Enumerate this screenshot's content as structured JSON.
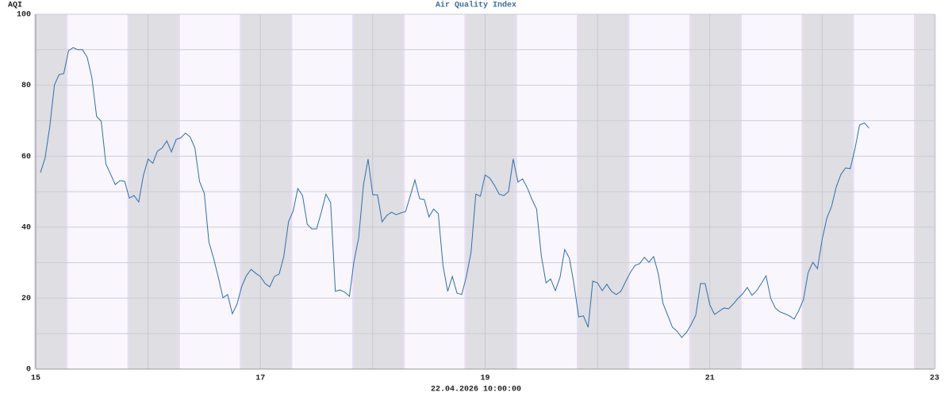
{
  "chart_data": {
    "type": "line",
    "title": "Air Quality Index",
    "y_label": "AQI",
    "x_label": "22.04.2026 10:00:00",
    "xlim": [
      15,
      23
    ],
    "xticks": [
      15,
      17,
      19,
      21,
      23
    ],
    "x_minor_grid": [
      16,
      18,
      20,
      22
    ],
    "ylim": [
      0,
      100
    ],
    "yticks": [
      0,
      20,
      40,
      60,
      80,
      100
    ],
    "y_minor_grid": [
      10,
      30,
      50,
      70,
      90
    ],
    "grid": true,
    "night_shading": [
      [
        15,
        15.27
      ],
      [
        15.83,
        16.27
      ],
      [
        16.83,
        17.27
      ],
      [
        17.83,
        18.27
      ],
      [
        18.83,
        19.27
      ],
      [
        19.83,
        20.27
      ],
      [
        20.83,
        21.27
      ],
      [
        21.83,
        22.27
      ],
      [
        22.83,
        23
      ]
    ],
    "series": [
      {
        "name": "AQI",
        "color": "#2f6fb0",
        "x": [
          15.042,
          15.083,
          15.125,
          15.167,
          15.208,
          15.25,
          15.292,
          15.333,
          15.375,
          15.417,
          15.458,
          15.5,
          15.542,
          15.583,
          15.625,
          15.667,
          15.708,
          15.75,
          15.792,
          15.833,
          15.875,
          15.917,
          15.958,
          16,
          16.042,
          16.083,
          16.125,
          16.167,
          16.208,
          16.25,
          16.292,
          16.333,
          16.375,
          16.417,
          16.458,
          16.5,
          16.542,
          16.583,
          16.625,
          16.667,
          16.708,
          16.75,
          16.792,
          16.833,
          16.875,
          16.917,
          16.958,
          17,
          17.042,
          17.083,
          17.125,
          17.167,
          17.208,
          17.25,
          17.292,
          17.333,
          17.375,
          17.417,
          17.458,
          17.5,
          17.542,
          17.583,
          17.625,
          17.667,
          17.708,
          17.75,
          17.792,
          17.833,
          17.875,
          17.917,
          17.958,
          18,
          18.042,
          18.083,
          18.125,
          18.167,
          18.208,
          18.25,
          18.292,
          18.333,
          18.375,
          18.417,
          18.458,
          18.5,
          18.542,
          18.583,
          18.625,
          18.667,
          18.708,
          18.75,
          18.792,
          18.833,
          18.875,
          18.917,
          18.958,
          19,
          19.042,
          19.083,
          19.125,
          19.167,
          19.208,
          19.25,
          19.292,
          19.333,
          19.375,
          19.417,
          19.458,
          19.5,
          19.542,
          19.583,
          19.625,
          19.667,
          19.708,
          19.75,
          19.792,
          19.833,
          19.875,
          19.917,
          19.958,
          20,
          20.042,
          20.083,
          20.125,
          20.167,
          20.208,
          20.25,
          20.292,
          20.333,
          20.375,
          20.417,
          20.458,
          20.5,
          20.542,
          20.583,
          20.625,
          20.667,
          20.708,
          20.75,
          20.792,
          20.833,
          20.875,
          20.917,
          20.958,
          21,
          21.042,
          21.083,
          21.125,
          21.167,
          21.208,
          21.25,
          21.292,
          21.333,
          21.375,
          21.417,
          21.458,
          21.5,
          21.542,
          21.583,
          21.625,
          21.667,
          21.708,
          21.75,
          21.792,
          21.833,
          21.875,
          21.917,
          21.958,
          22,
          22.042,
          22.083,
          22.125,
          22.167,
          22.208,
          22.25,
          22.292,
          22.333,
          22.375,
          22.417
        ],
        "values": [
          55.4,
          59.4,
          68.3,
          80.1,
          83.0,
          83.3,
          89.7,
          90.6,
          90.0,
          90.0,
          87.9,
          82.1,
          71.2,
          69.9,
          57.8,
          54.9,
          52.0,
          53.1,
          52.9,
          48.2,
          48.9,
          47.1,
          54.5,
          59.2,
          58.0,
          61.4,
          62.3,
          64.3,
          61.2,
          64.7,
          65.2,
          66.5,
          65.4,
          62.3,
          52.9,
          49.6,
          35.7,
          31.3,
          25.9,
          20.1,
          21.0,
          15.6,
          18.3,
          23.2,
          26.3,
          28.1,
          27.0,
          26.1,
          24.1,
          23.2,
          26.1,
          26.8,
          31.7,
          41.5,
          44.6,
          50.9,
          48.9,
          40.8,
          39.5,
          39.5,
          44.2,
          49.3,
          46.9,
          21.9,
          22.3,
          21.7,
          20.5,
          30.4,
          37.1,
          51.8,
          59.2,
          49.1,
          49.1,
          41.5,
          43.3,
          44.2,
          43.5,
          44.0,
          44.4,
          48.7,
          53.3,
          48.0,
          47.8,
          42.9,
          45.1,
          43.8,
          29.2,
          21.9,
          26.1,
          21.4,
          21.0,
          26.1,
          33.0,
          49.3,
          48.7,
          54.7,
          53.8,
          51.8,
          49.3,
          48.9,
          50.0,
          59.2,
          52.7,
          53.6,
          51.1,
          47.8,
          45.1,
          31.9,
          24.3,
          25.4,
          22.1,
          25.9,
          33.7,
          31.3,
          23.7,
          14.7,
          15.0,
          11.8,
          24.8,
          24.3,
          22.1,
          23.9,
          21.9,
          21.0,
          21.9,
          24.6,
          27.2,
          29.2,
          29.7,
          31.5,
          30.1,
          31.7,
          26.8,
          18.5,
          15.2,
          11.8,
          10.7,
          8.9,
          10.3,
          12.5,
          15.2,
          24.1,
          24.1,
          18.1,
          15.4,
          16.3,
          17.2,
          17.0,
          18.3,
          19.9,
          21.2,
          23.0,
          20.8,
          22.1,
          24.1,
          26.3,
          19.9,
          17.2,
          16.1,
          15.6,
          15.0,
          14.1,
          16.5,
          19.6,
          27.2,
          30.1,
          28.3,
          36.6,
          42.6,
          45.8,
          51.3,
          54.9,
          56.7,
          56.5,
          62.1,
          68.8,
          69.4,
          67.9
        ]
      }
    ]
  }
}
